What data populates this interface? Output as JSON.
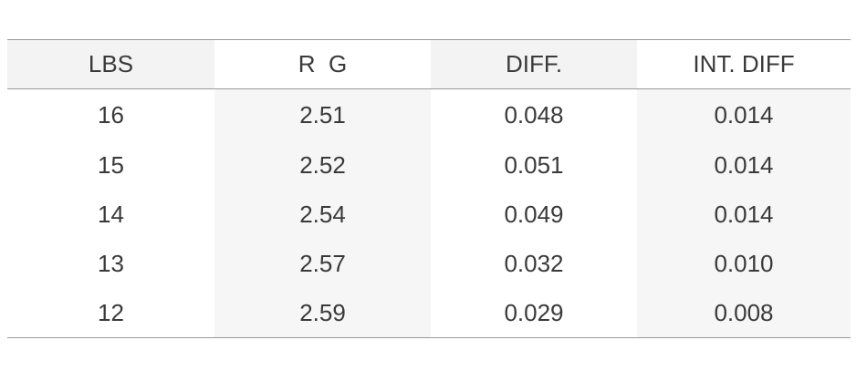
{
  "table": {
    "header": [
      "LBS",
      "R  G",
      "DIFF.",
      "INT. DIFF"
    ],
    "rows": [
      [
        "16",
        "2.51",
        "0.048",
        "0.014"
      ],
      [
        "15",
        "2.52",
        "0.051",
        "0.014"
      ],
      [
        "14",
        "2.54",
        "0.049",
        "0.014"
      ],
      [
        "13",
        "2.57",
        "0.032",
        "0.010"
      ],
      [
        "12",
        "2.59",
        "0.029",
        "0.008"
      ]
    ]
  }
}
